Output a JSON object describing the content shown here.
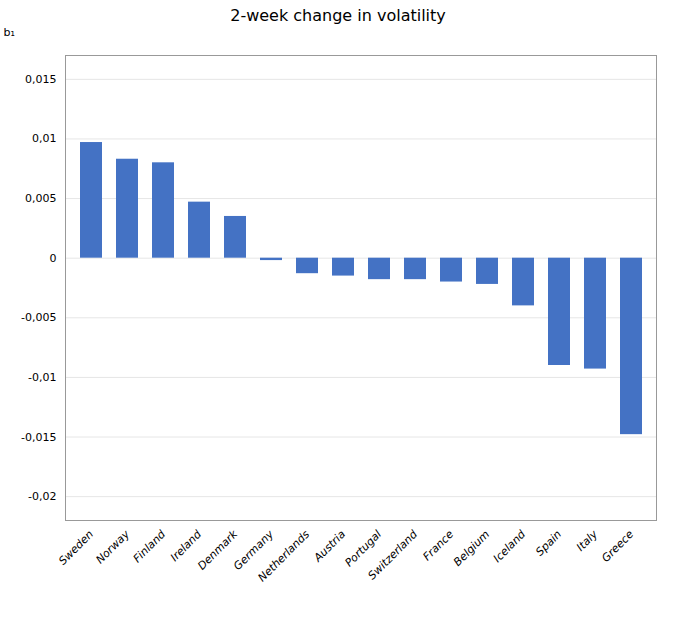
{
  "chart_data": {
    "type": "bar",
    "title": "2-week change in volatility",
    "ylabel": "b₁",
    "categories": [
      "Sweden",
      "Norway",
      "Finland",
      "Ireland",
      "Denmark",
      "Germany",
      "Netherlands",
      "Austria",
      "Portugal",
      "Switzerland",
      "France",
      "Belgium",
      "Iceland",
      "Spain",
      "Italy",
      "Greece"
    ],
    "values": [
      0.0097,
      0.0083,
      0.008,
      0.0047,
      0.0035,
      -0.0002,
      -0.0013,
      -0.0015,
      -0.0018,
      -0.0018,
      -0.002,
      -0.0022,
      -0.004,
      -0.009,
      -0.0093,
      -0.0148
    ],
    "color": "#4472C4",
    "ylim": [
      -0.022,
      0.017
    ],
    "yticks": [
      {
        "value": -0.02,
        "label": "-0,02"
      },
      {
        "value": -0.015,
        "label": "-0,015"
      },
      {
        "value": -0.01,
        "label": "-0,01"
      },
      {
        "value": -0.005,
        "label": "-0,005"
      },
      0,
      {
        "value": 0.005,
        "label": "0,005"
      },
      {
        "value": 0.01,
        "label": "0,01"
      },
      {
        "value": 0.015,
        "label": "0,015"
      }
    ],
    "grid": true
  }
}
